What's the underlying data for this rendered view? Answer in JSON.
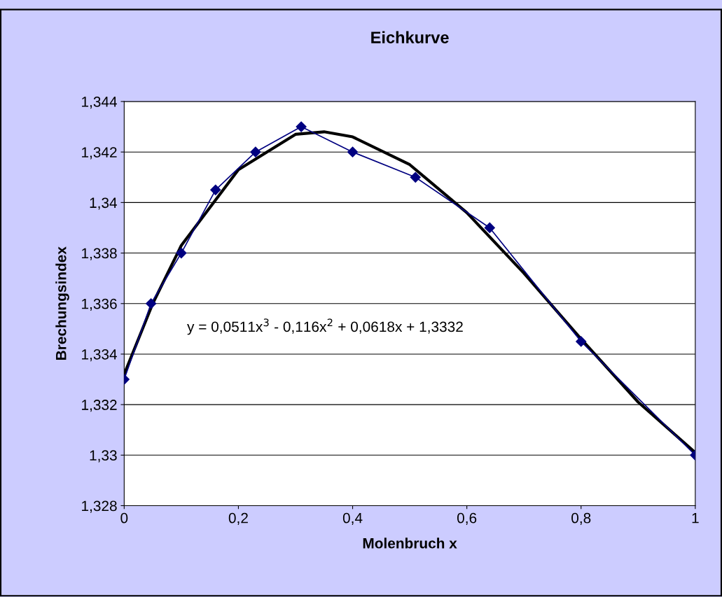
{
  "chart_data": {
    "type": "line",
    "title": "Eichkurve",
    "xlabel": "Molenbruch x",
    "ylabel": "Brechungsindex",
    "series": [
      {
        "color": "#000080",
        "marker": "diamond",
        "x": [
          0,
          0.047,
          0.1,
          0.16,
          0.23,
          0.31,
          0.4,
          0.51,
          0.64,
          0.8,
          1
        ],
        "values": [
          1.333,
          1.336,
          1.338,
          1.3405,
          1.342,
          1.343,
          1.342,
          1.341,
          1.339,
          1.3345,
          1.33
        ]
      },
      {
        "color": "#000000",
        "marker": "none",
        "x": [
          0,
          0.05,
          0.1,
          0.2,
          0.3,
          0.35,
          0.4,
          0.5,
          0.6,
          0.7,
          0.8,
          0.9,
          1
        ],
        "values": [
          1.3332,
          1.336,
          1.3383,
          1.3413,
          1.3427,
          1.3428,
          1.3426,
          1.3415,
          1.3396,
          1.3372,
          1.3346,
          1.3321,
          1.3301
        ]
      }
    ],
    "annotations": [
      "y = 0,0511x$^{3}$ - 0,116x$^{2}$ + 0,0618x + 1,3332"
    ],
    "xlim": [
      0,
      1
    ],
    "ylim": [
      1.328,
      1.344
    ],
    "xticks": [
      0,
      {
        "value": 0.2,
        "label": "0,2"
      },
      {
        "value": 0.4,
        "label": "0,4"
      },
      {
        "value": 0.6,
        "label": "0,6"
      },
      {
        "value": 0.8,
        "label": "0,8"
      },
      1
    ],
    "yticks": [
      {
        "value": 1.328,
        "label": "1,328"
      },
      {
        "value": 1.33,
        "label": "1,33"
      },
      {
        "value": 1.332,
        "label": "1,332"
      },
      {
        "value": 1.334,
        "label": "1,334"
      },
      {
        "value": 1.336,
        "label": "1,336"
      },
      {
        "value": 1.338,
        "label": "1,338"
      },
      {
        "value": 1.34,
        "label": "1,34"
      },
      {
        "value": 1.342,
        "label": "1,342"
      },
      {
        "value": 1.344,
        "label": "1,344"
      }
    ],
    "grid": "y"
  }
}
